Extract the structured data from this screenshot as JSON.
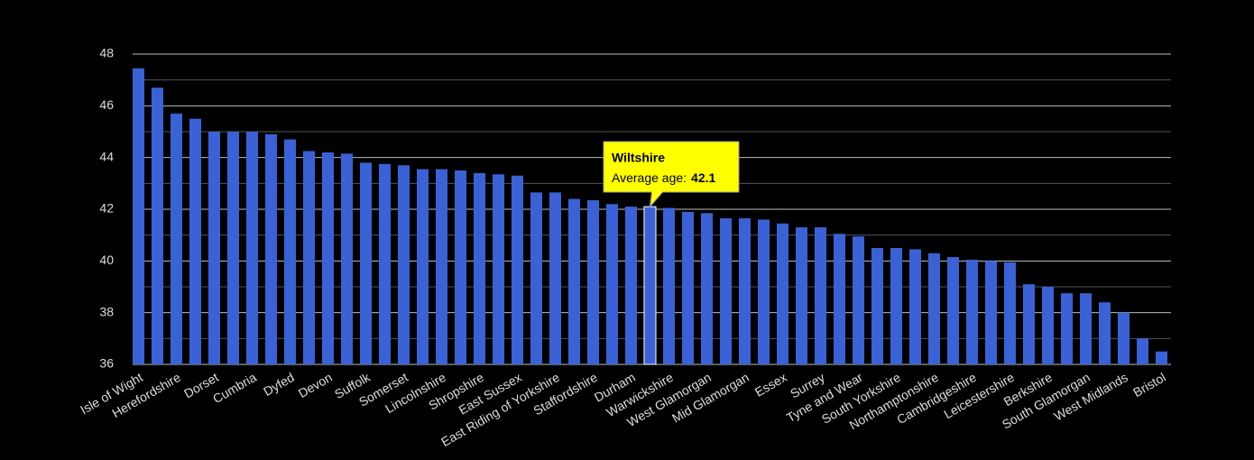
{
  "chart_data": {
    "type": "bar",
    "categories": [
      "Isle of Wight",
      null,
      "Herefordshire",
      null,
      "Dorset",
      null,
      "Cumbria",
      null,
      "Dyfed",
      null,
      "Devon",
      null,
      "Suffolk",
      null,
      "Somerset",
      null,
      "Lincolnshire",
      null,
      "Shropshire",
      null,
      "East Sussex",
      null,
      "East Riding of Yorkshire",
      null,
      "Staffordshire",
      null,
      "Durham",
      null,
      "Warwickshire",
      null,
      "West Glamorgan",
      null,
      "Mid Glamorgan",
      null,
      "Essex",
      null,
      "Surrey",
      null,
      "Tyne and Wear",
      null,
      "South Yorkshire",
      null,
      "Northamptonshire",
      null,
      "Cambridgeshire",
      null,
      "Leicestershire",
      null,
      "Berkshire",
      null,
      "South Glamorgan",
      null,
      "West Midlands",
      null,
      "Bristol"
    ],
    "values": [
      47.45,
      46.7,
      45.7,
      45.5,
      45.0,
      45.0,
      45.0,
      44.9,
      44.7,
      44.25,
      44.2,
      44.15,
      43.8,
      43.75,
      43.7,
      43.55,
      43.55,
      43.5,
      43.4,
      43.35,
      43.3,
      42.65,
      42.65,
      42.4,
      42.35,
      42.2,
      42.1,
      42.1,
      42.05,
      41.9,
      41.85,
      41.65,
      41.65,
      41.6,
      41.45,
      41.3,
      41.3,
      41.05,
      40.95,
      40.5,
      40.5,
      40.45,
      40.3,
      40.15,
      40.05,
      40.0,
      39.95,
      39.1,
      39.0,
      38.75,
      38.75,
      38.4,
      38.0,
      37.0,
      36.5
    ],
    "color": "#3a62d6",
    "ylim": [
      36,
      48
    ],
    "yticks": [
      36,
      38,
      40,
      42,
      44,
      46,
      48
    ],
    "minor_yticks": [
      37,
      39,
      41,
      43,
      45,
      47
    ],
    "grid": true,
    "tooltip": {
      "index": 27,
      "name": "Wiltshire",
      "text": "Average age:"
    }
  }
}
